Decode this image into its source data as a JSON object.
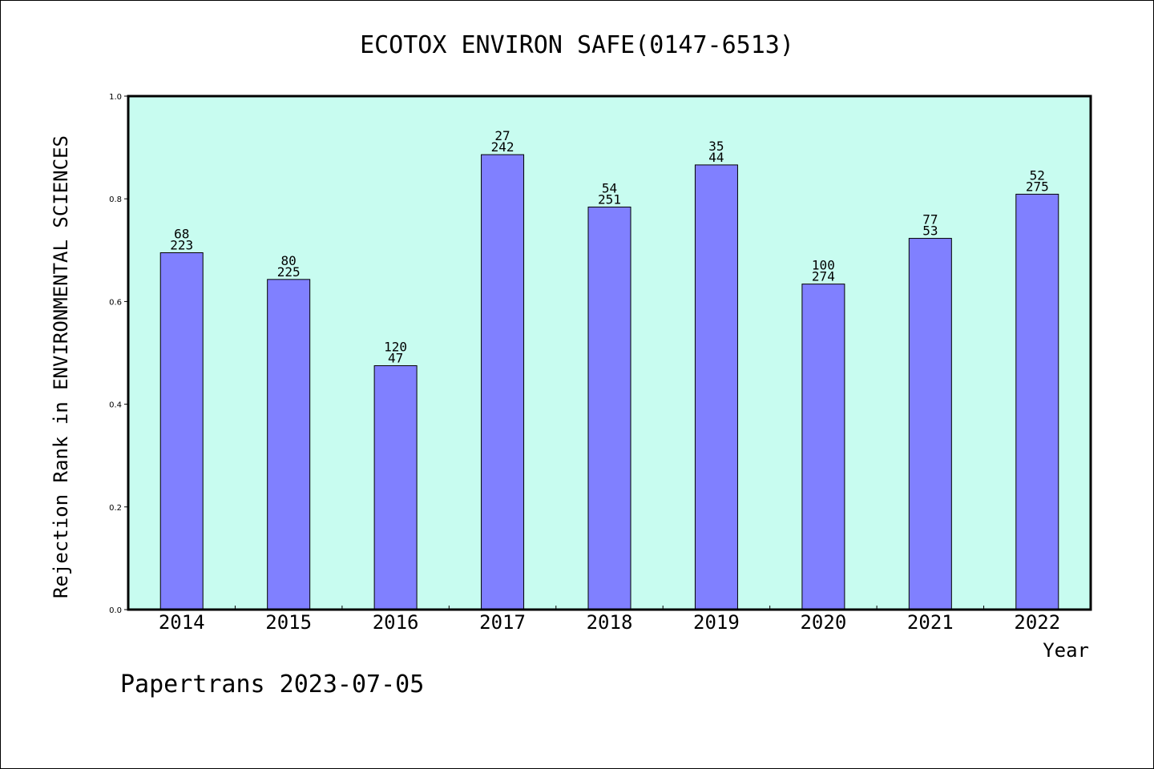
{
  "chart_data": {
    "type": "bar",
    "title": "ECOTOX ENVIRON SAFE(0147-6513)",
    "xlabel": "Year",
    "ylabel": "Rejection Rank in ENVIRONMENTAL SCIENCES",
    "ylim": [
      0,
      1.0
    ],
    "yticks": [
      "0.0",
      "0.2",
      "0.4",
      "0.6",
      "0.8",
      "1.0"
    ],
    "categories": [
      "2014",
      "2015",
      "2016",
      "2017",
      "2018",
      "2019",
      "2020",
      "2021",
      "2022"
    ],
    "values": [
      0.695,
      0.643,
      0.475,
      0.886,
      0.784,
      0.866,
      0.634,
      0.723,
      0.809
    ],
    "bar_labels_top": [
      "68",
      "80",
      "120",
      "27",
      "54",
      "35",
      "100",
      "77",
      "52"
    ],
    "bar_labels_bottom": [
      "223",
      "225",
      "47",
      "242",
      "251",
      "44",
      "274",
      "53",
      "275"
    ],
    "grid": false,
    "colors": {
      "bar_fill": "#8080ff",
      "plot_background": "#c8fcf0",
      "axis": "#000000"
    }
  },
  "footer": {
    "credit": "Papertrans 2023-07-05"
  }
}
